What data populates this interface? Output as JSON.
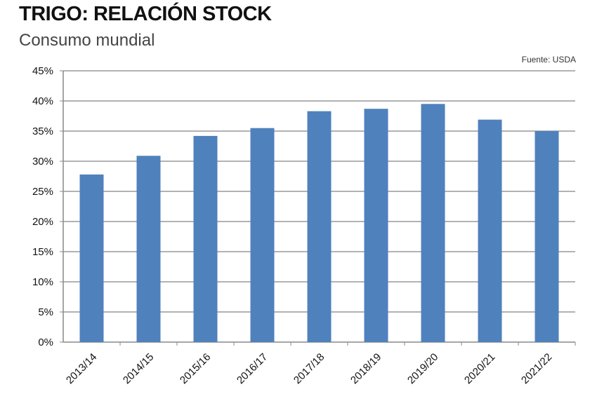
{
  "chart_data": {
    "type": "bar",
    "title": "TRIGO: RELACIÓN STOCK",
    "subtitle": "Consumo mundial",
    "source": "Fuente: USDA",
    "categories": [
      "2013/14",
      "2014/15",
      "2015/16",
      "2016/17",
      "2017/18",
      "2018/19",
      "2019/20",
      "2020/21",
      "2021/22"
    ],
    "values": [
      27.8,
      30.9,
      34.2,
      35.5,
      38.3,
      38.7,
      39.5,
      36.9,
      35.0
    ],
    "ylim": [
      0,
      45
    ],
    "yticks": [
      "0%",
      "5%",
      "10%",
      "15%",
      "20%",
      "25%",
      "30%",
      "35%",
      "40%",
      "45%"
    ],
    "grid": true,
    "bar_color": "#4f81bd",
    "xlabel": "",
    "ylabel": ""
  }
}
